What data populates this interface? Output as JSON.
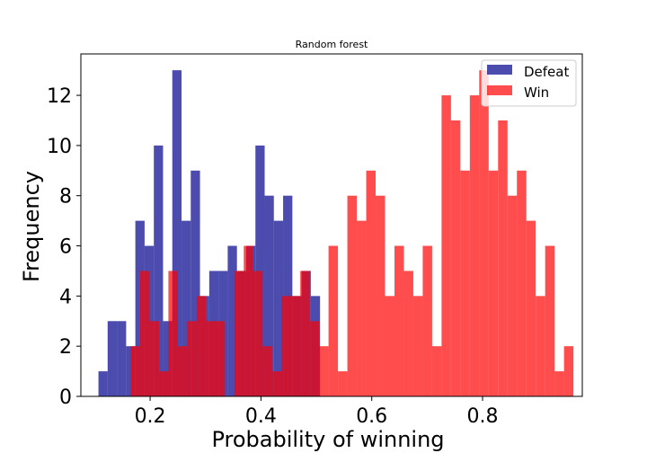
{
  "chart_data": {
    "type": "histogram",
    "title": "Random forest",
    "xlabel": "Probability of winning",
    "ylabel": "Frequency",
    "xlim": [
      0.075,
      0.98
    ],
    "ylim": [
      0,
      13.65
    ],
    "xticks": [
      0.2,
      0.4,
      0.6,
      0.8
    ],
    "xtick_labels": [
      "0.2",
      "0.4",
      "0.6",
      "0.8"
    ],
    "yticks": [
      0,
      2,
      4,
      6,
      8,
      10,
      12
    ],
    "ytick_labels": [
      "0",
      "2",
      "4",
      "6",
      "8",
      "10",
      "12"
    ],
    "legend": {
      "position": "top-right"
    },
    "grid": false,
    "series": [
      {
        "name": "Defeat",
        "color": "#00008b",
        "alpha": 0.7,
        "bins": [
          [
            0.1067,
            0.1233,
            1
          ],
          [
            0.1233,
            0.14,
            3
          ],
          [
            0.14,
            0.1567,
            3
          ],
          [
            0.1567,
            0.1733,
            2
          ],
          [
            0.1733,
            0.19,
            7
          ],
          [
            0.19,
            0.2067,
            6
          ],
          [
            0.2067,
            0.2233,
            10
          ],
          [
            0.2233,
            0.24,
            3
          ],
          [
            0.24,
            0.2567,
            13
          ],
          [
            0.2567,
            0.2733,
            7
          ],
          [
            0.2733,
            0.29,
            9
          ],
          [
            0.29,
            0.3067,
            4
          ],
          [
            0.3067,
            0.3233,
            5
          ],
          [
            0.3233,
            0.34,
            5
          ],
          [
            0.34,
            0.3567,
            6
          ],
          [
            0.3567,
            0.3733,
            5
          ],
          [
            0.3733,
            0.39,
            6
          ],
          [
            0.39,
            0.4067,
            10
          ],
          [
            0.4067,
            0.4233,
            8
          ],
          [
            0.4233,
            0.44,
            7
          ],
          [
            0.44,
            0.4567,
            8
          ],
          [
            0.4567,
            0.4733,
            4
          ],
          [
            0.4733,
            0.49,
            5
          ],
          [
            0.49,
            0.5067,
            4
          ]
        ]
      },
      {
        "name": "Win",
        "color": "#ff0000",
        "alpha": 0.7,
        "bins": [
          [
            0.165,
            0.182,
            2
          ],
          [
            0.182,
            0.199,
            5
          ],
          [
            0.199,
            0.216,
            3
          ],
          [
            0.216,
            0.233,
            1
          ],
          [
            0.233,
            0.25,
            5
          ],
          [
            0.25,
            0.267,
            2
          ],
          [
            0.267,
            0.284,
            3
          ],
          [
            0.284,
            0.301,
            4
          ],
          [
            0.301,
            0.318,
            3
          ],
          [
            0.318,
            0.335,
            3
          ],
          [
            0.335,
            0.352,
            0
          ],
          [
            0.352,
            0.369,
            5
          ],
          [
            0.369,
            0.386,
            6
          ],
          [
            0.386,
            0.403,
            5
          ],
          [
            0.403,
            0.42,
            2
          ],
          [
            0.42,
            0.437,
            1
          ],
          [
            0.437,
            0.454,
            4
          ],
          [
            0.454,
            0.471,
            4
          ],
          [
            0.471,
            0.488,
            5
          ],
          [
            0.488,
            0.505,
            3
          ],
          [
            0.505,
            0.522,
            2
          ],
          [
            0.522,
            0.539,
            6
          ],
          [
            0.539,
            0.556,
            1
          ],
          [
            0.556,
            0.573,
            8
          ],
          [
            0.573,
            0.59,
            7
          ],
          [
            0.59,
            0.607,
            9
          ],
          [
            0.607,
            0.624,
            8
          ],
          [
            0.624,
            0.641,
            4
          ],
          [
            0.641,
            0.658,
            6
          ],
          [
            0.658,
            0.675,
            5
          ],
          [
            0.675,
            0.692,
            4
          ],
          [
            0.692,
            0.709,
            6
          ],
          [
            0.709,
            0.726,
            2
          ],
          [
            0.726,
            0.743,
            12
          ],
          [
            0.743,
            0.76,
            11
          ],
          [
            0.76,
            0.777,
            9
          ],
          [
            0.777,
            0.794,
            12
          ],
          [
            0.794,
            0.811,
            13
          ],
          [
            0.811,
            0.828,
            9
          ],
          [
            0.828,
            0.845,
            11
          ],
          [
            0.845,
            0.862,
            8
          ],
          [
            0.862,
            0.879,
            9
          ],
          [
            0.879,
            0.896,
            7
          ],
          [
            0.896,
            0.913,
            4
          ],
          [
            0.913,
            0.93,
            6
          ],
          [
            0.93,
            0.947,
            1
          ],
          [
            0.947,
            0.964,
            2
          ]
        ]
      }
    ]
  }
}
